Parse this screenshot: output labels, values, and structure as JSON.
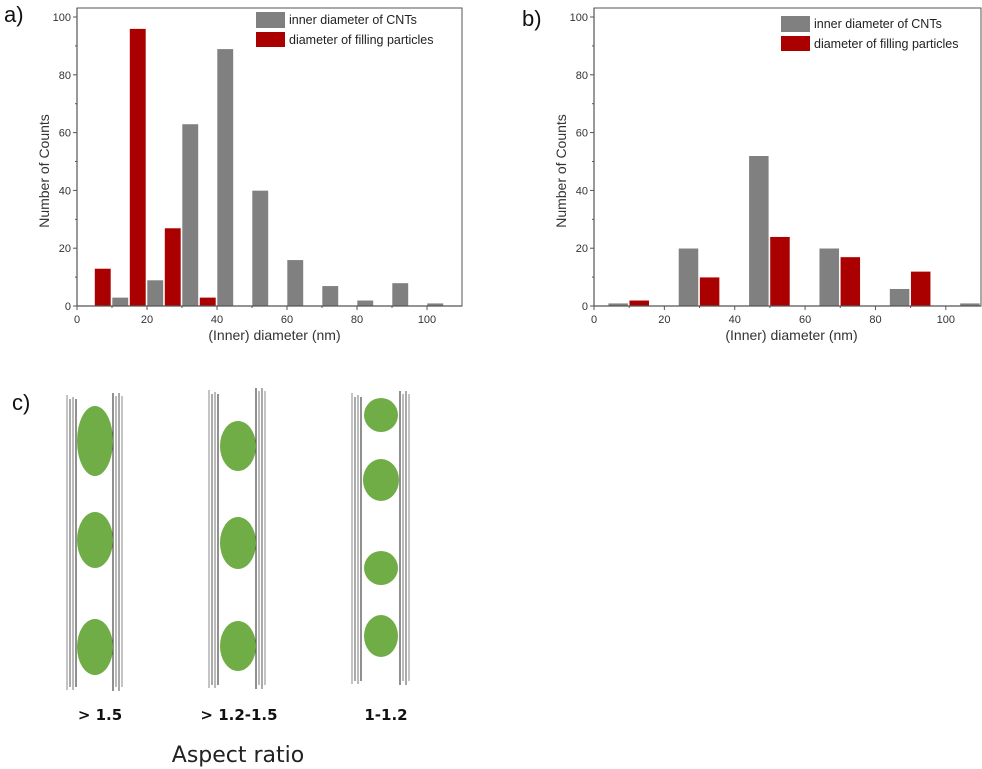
{
  "panels": {
    "a": "a)",
    "b": "b)",
    "c": "c)"
  },
  "colors": {
    "cnt": "#808080",
    "particles": "#aa0000",
    "particle_fill": "#70ad47",
    "axis": "#555555"
  },
  "chart_data": [
    {
      "id": "a",
      "type": "bar",
      "title": "",
      "xlabel": "(Inner) diameter (nm)",
      "ylabel": "Number of Counts",
      "xlim": [
        0,
        110
      ],
      "ylim": [
        0,
        103
      ],
      "xticks": [
        0,
        20,
        40,
        60,
        80,
        100
      ],
      "yticks": [
        0,
        20,
        40,
        60,
        80,
        100
      ],
      "grid": false,
      "legend_position": "top-right",
      "bin_width": 5,
      "series": [
        {
          "name": "inner diameter of CNTs",
          "color": "#808080",
          "bins": [
            [
              10,
              15
            ],
            [
              20,
              25
            ],
            [
              30,
              35
            ],
            [
              40,
              45
            ],
            [
              50,
              55
            ],
            [
              60,
              65
            ],
            [
              70,
              75
            ],
            [
              80,
              85
            ],
            [
              90,
              95
            ],
            [
              100,
              105
            ]
          ],
          "values": [
            3,
            9,
            63,
            89,
            40,
            16,
            7,
            2,
            8,
            1
          ]
        },
        {
          "name": "diameter of filling particles",
          "color": "#aa0000",
          "bins": [
            [
              5,
              10
            ],
            [
              15,
              20
            ],
            [
              25,
              30
            ],
            [
              35,
              40
            ]
          ],
          "values": [
            13,
            96,
            27,
            3
          ]
        }
      ]
    },
    {
      "id": "b",
      "type": "bar",
      "title": "",
      "xlabel": "(Inner) diameter (nm)",
      "ylabel": "Number of Counts",
      "xlim": [
        0,
        110
      ],
      "ylim": [
        0,
        103
      ],
      "xticks": [
        0,
        20,
        40,
        60,
        80,
        100
      ],
      "yticks": [
        0,
        20,
        40,
        60,
        80,
        100
      ],
      "grid": false,
      "legend_position": "top-right",
      "bin_width": 6,
      "series": [
        {
          "name": "inner diameter of CNTs",
          "color": "#808080",
          "bins": [
            [
              4,
              10
            ],
            [
              24,
              30
            ],
            [
              44,
              50
            ],
            [
              64,
              70
            ],
            [
              84,
              90
            ],
            [
              104,
              110
            ]
          ],
          "values": [
            1,
            20,
            52,
            20,
            6,
            1
          ]
        },
        {
          "name": "diameter of filling particles",
          "color": "#aa0000",
          "bins": [
            [
              10,
              16
            ],
            [
              30,
              36
            ],
            [
              50,
              56
            ],
            [
              70,
              76
            ],
            [
              90,
              96
            ]
          ],
          "values": [
            2,
            10,
            24,
            17,
            12
          ]
        }
      ]
    }
  ],
  "diagram": {
    "title": "Aspect ratio",
    "tubes": [
      {
        "label": "> 1.5",
        "particles": 3,
        "aspect": 1.6
      },
      {
        "label": "> 1.2-1.5",
        "particles": 3,
        "aspect": 1.4
      },
      {
        "label": "1-1.2",
        "particles": 4,
        "aspect": 1.2
      }
    ]
  }
}
